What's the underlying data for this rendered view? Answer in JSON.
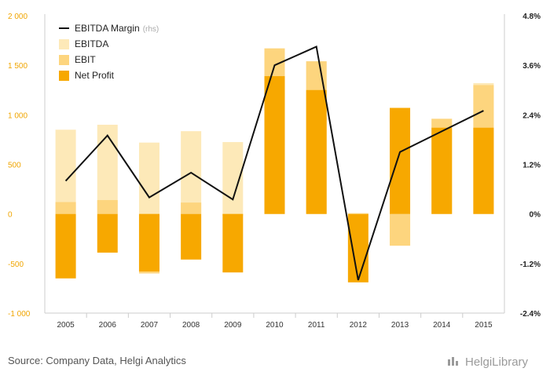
{
  "chart_data": {
    "type": "bar",
    "categories": [
      "2005",
      "2006",
      "2007",
      "2008",
      "2009",
      "2010",
      "2011",
      "2012",
      "2013",
      "2014",
      "2015"
    ],
    "series": [
      {
        "name": "EBITDA",
        "type": "bar",
        "axis": "left",
        "color": "#fde9b8",
        "values": [
          850,
          900,
          720,
          835,
          725,
          1670,
          1540,
          10,
          -320,
          960,
          1320
        ]
      },
      {
        "name": "EBIT",
        "type": "bar",
        "axis": "left",
        "color": "#fdd57e",
        "values": [
          120,
          140,
          -600,
          115,
          -15,
          1670,
          1540,
          -10,
          -320,
          960,
          1300
        ]
      },
      {
        "name": "Net Profit",
        "type": "bar",
        "axis": "left",
        "color": "#f7a800",
        "values": [
          -650,
          -390,
          -580,
          -460,
          -590,
          1390,
          1250,
          -690,
          1070,
          870,
          870
        ]
      },
      {
        "name": "EBITDA Margin",
        "name_suffix": "(rhs)",
        "type": "line",
        "axis": "right",
        "color": "#111111",
        "values": [
          0.8,
          1.9,
          0.4,
          1.0,
          0.35,
          3.6,
          4.05,
          -1.6,
          1.5,
          2.0,
          2.5
        ]
      }
    ],
    "left_axis": {
      "ylim": [
        -1000,
        2000
      ],
      "ticks": [
        -1000,
        -500,
        0,
        500,
        1000,
        1500,
        2000
      ],
      "tick_labels": [
        "-1 000",
        "-500",
        "0",
        "500",
        "1 000",
        "1 500",
        "2 000"
      ]
    },
    "right_axis": {
      "ylim": [
        -2.4,
        4.8
      ],
      "ticks": [
        -2.4,
        -1.2,
        0,
        1.2,
        2.4,
        3.6,
        4.8
      ],
      "tick_labels": [
        "-2.4%",
        "-1.2%",
        "0%",
        "1.2%",
        "2.4%",
        "3.6%",
        "4.8%"
      ]
    },
    "legend_position": "top-left",
    "grid": false
  },
  "footer": {
    "source": "Source: Company Data, Helgi Analytics",
    "logo_text": "HelgiLibrary"
  }
}
